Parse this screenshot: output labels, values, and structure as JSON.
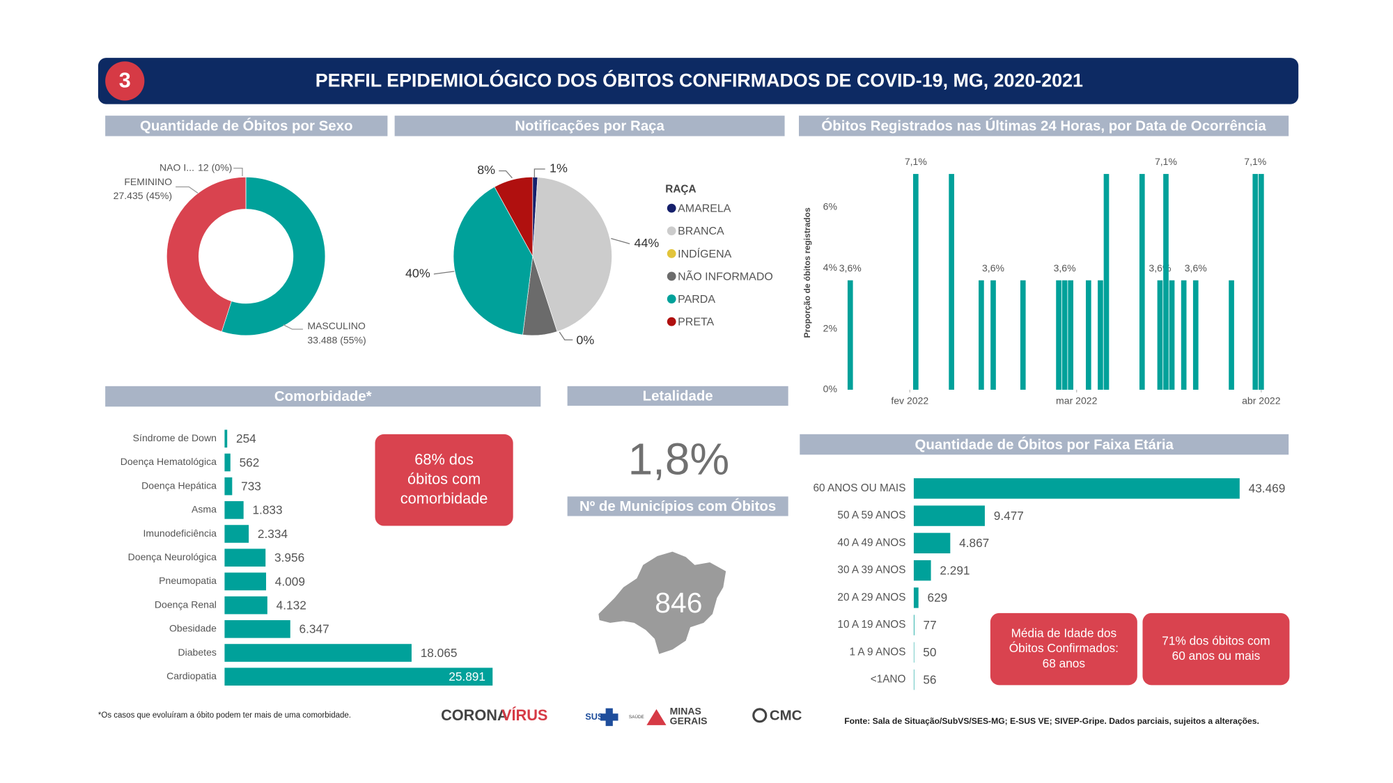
{
  "header": {
    "badge": "3",
    "title": "PERFIL EPIDEMIOLÓGICO DOS ÓBITOS CONFIRMADOS DE COVID-19, MG, 2020-2021"
  },
  "chart_data": [
    {
      "type": "donut",
      "title": "Quantidade de Óbitos por Sexo",
      "categories": [
        "MASCULINO",
        "FEMININO",
        "NAO I..."
      ],
      "values": [
        33488,
        27435,
        12
      ],
      "value_labels": [
        "33.488 (55%)",
        "27.435 (45%)",
        "12 (0%)"
      ],
      "colors": [
        "#00a19a",
        "#d9434f",
        "#8a8a8a"
      ]
    },
    {
      "type": "pie",
      "title": "Notificações por Raça",
      "legend_title": "RAÇA",
      "legend": "right",
      "categories": [
        "AMARELA",
        "BRANCA",
        "INDÍGENA",
        "NÃO INFORMADO",
        "PARDA",
        "PRETA"
      ],
      "values": [
        1,
        44,
        0,
        7,
        40,
        8
      ],
      "value_labels": [
        "1%",
        "44%",
        "0%",
        null,
        "40%",
        "8%"
      ],
      "colors": [
        "#15206b",
        "#cccccc",
        "#e2c43b",
        "#6b6b6b",
        "#00a19a",
        "#b0100f"
      ]
    },
    {
      "type": "bar",
      "title": "Óbitos Registrados nas Últimas 24 Horas, por Data de Ocorrência",
      "y_label": "Proporção de óbitos registrados",
      "x": [
        22,
        33,
        39,
        44,
        46,
        51,
        57,
        58,
        59,
        62,
        64,
        65,
        71,
        74,
        75,
        76,
        78,
        80,
        86,
        90,
        91
      ],
      "values": [
        3.6,
        7.1,
        7.1,
        3.6,
        3.6,
        3.6,
        3.6,
        3.6,
        3.6,
        3.6,
        3.6,
        7.1,
        7.1,
        3.6,
        7.1,
        3.6,
        3.6,
        3.6,
        3.6,
        7.1,
        7.1
      ],
      "value_labels": [
        "3,6%",
        "7,1%",
        null,
        null,
        "3,6%",
        null,
        null,
        "3,6%",
        null,
        null,
        null,
        null,
        null,
        "3,6%",
        "7,1%",
        null,
        null,
        "3,6%",
        null,
        "7,1%",
        null
      ],
      "xlim": [
        21,
        95
      ],
      "xticks": [
        {
          "value": 32,
          "label": "fev 2022"
        },
        {
          "value": 60,
          "label": "mar 2022"
        },
        {
          "value": 91,
          "label": "abr 2022"
        }
      ],
      "ylim": [
        0,
        7.7
      ],
      "yticks": [
        {
          "value": 0,
          "label": "0%"
        },
        {
          "value": 2,
          "label": "2%"
        },
        {
          "value": 4,
          "label": "4%"
        },
        {
          "value": 6,
          "label": "6%"
        }
      ],
      "color": "#00a19a",
      "grid": false
    },
    {
      "type": "hbar",
      "title": "Comorbidade*",
      "categories": [
        "Síndrome de Down",
        "Doença Hematológica",
        "Doença Hepática",
        "Asma",
        "Imunodeficiência",
        "Doença Neurológica",
        "Pneumopatia",
        "Doença Renal",
        "Obesidade",
        "Diabetes",
        "Cardiopatia"
      ],
      "values": [
        254,
        562,
        733,
        1833,
        2334,
        3956,
        4009,
        4132,
        6347,
        18065,
        25891
      ],
      "value_labels": [
        "254",
        "562",
        "733",
        "1.833",
        "2.334",
        "3.956",
        "4.009",
        "4.132",
        "6.347",
        "18.065",
        "25.891"
      ],
      "color": "#00a19a",
      "annotations": [
        [
          "68% dos",
          "óbitos com",
          "comorbidade"
        ]
      ],
      "footnote": "*Os casos que evoluíram a óbito podem ter mais de uma comorbidade."
    },
    {
      "type": "hbar",
      "title": "Quantidade de Óbitos por Faixa Etária",
      "categories": [
        "60 ANOS OU MAIS",
        "50 A 59 ANOS",
        "40 A 49 ANOS",
        "30 A 39 ANOS",
        "20 A 29 ANOS",
        "10 A 19 ANOS",
        "1 A 9 ANOS",
        "<1ANO"
      ],
      "values": [
        43469,
        9477,
        4867,
        2291,
        629,
        77,
        50,
        56
      ],
      "value_labels": [
        "43.469",
        "9.477",
        "4.867",
        "2.291",
        "629",
        "77",
        "50",
        "56"
      ],
      "color": "#00a19a",
      "annotations": [
        [
          "Média de Idade dos",
          "Óbitos Confirmados:",
          "68 anos"
        ],
        [
          "71% dos óbitos com",
          "60 anos ou mais"
        ]
      ]
    }
  ],
  "kpis": [
    {
      "title": "Letalidade",
      "value": 1.8,
      "value_label": "1,8%"
    },
    {
      "title": "Nº de Municípios com Óbitos",
      "value": 846
    }
  ],
  "footer": {
    "source": "Fonte: Sala de Situação/SubVS/SES-MG; E-SUS VE; SIVEP-Gripe. Dados parciais, sujeitos a alterações.",
    "logos": [
      "CORONA",
      "VÍRUS",
      "SUS",
      "SAÚDE",
      "MINAS",
      "GERAIS",
      "CMC"
    ]
  }
}
